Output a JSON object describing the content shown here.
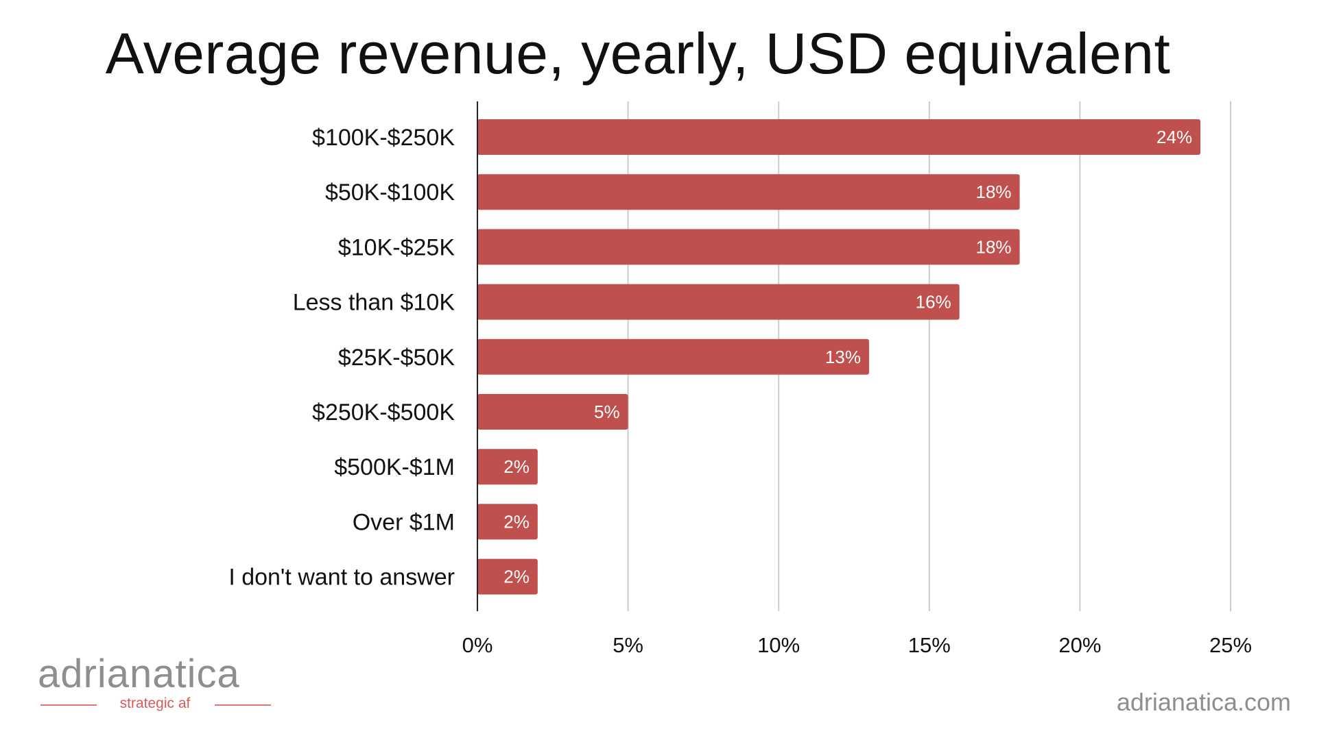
{
  "title": "Average revenue, yearly, USD equivalent",
  "chart_data": {
    "type": "bar",
    "orientation": "horizontal",
    "title": "Average revenue, yearly, USD equivalent",
    "xlabel": "",
    "ylabel": "",
    "categories": [
      "$100K-$250K",
      "$50K-$100K",
      "$10K-$25K",
      "Less than $10K",
      "$25K-$50K",
      "$250K-$500K",
      "$500K-$1M",
      "Over $1M",
      "I don't want to answer"
    ],
    "values": [
      24,
      18,
      18,
      16,
      13,
      5,
      2,
      2,
      2
    ],
    "value_labels": [
      "24%",
      "18%",
      "18%",
      "16%",
      "13%",
      "5%",
      "2%",
      "2%",
      "2%"
    ],
    "xlim": [
      0,
      25
    ],
    "xticks": [
      0,
      5,
      10,
      15,
      20,
      25
    ],
    "xtick_labels": [
      "0%",
      "5%",
      "10%",
      "15%",
      "20%",
      "25%"
    ],
    "grid": "vertical",
    "bar_color": "#bf504d",
    "gridline_color": "#cccccc"
  },
  "branding": {
    "logo_text": "adrianatica",
    "tagline": "strategic af",
    "website": "adrianatica.com"
  }
}
